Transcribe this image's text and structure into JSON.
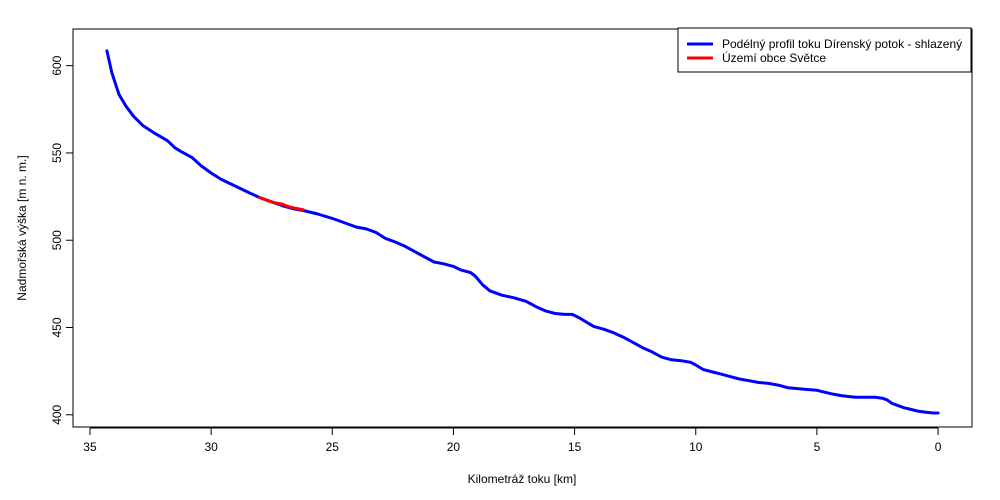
{
  "chart_data": {
    "type": "line",
    "title": "",
    "xlabel": "Kilometráž toku [km]",
    "ylabel": "Nadmořská výška [m n. m.]",
    "xlim": [
      35.7,
      -1.4
    ],
    "ylim": [
      393,
      621
    ],
    "x_reversed": true,
    "x_ticks": [
      35,
      30,
      25,
      20,
      15,
      10,
      5,
      0
    ],
    "x_tick_labels": [
      "35",
      "30",
      "25",
      "20",
      "15",
      "10",
      "5",
      "0"
    ],
    "y_ticks": [
      400,
      450,
      500,
      550,
      600
    ],
    "y_tick_labels": [
      "400",
      "450",
      "500",
      "550",
      "600"
    ],
    "grid": false,
    "legend_position": "top-right",
    "series": [
      {
        "name": "Podélný profil toku Dírenský potok - shlazený",
        "color": "#0000ff",
        "x": [
          34.3,
          34.1,
          33.8,
          33.5,
          33.2,
          32.8,
          32.3,
          31.8,
          31.5,
          31.2,
          30.8,
          30.4,
          30.0,
          29.6,
          29.0,
          28.4,
          28.0,
          27.4,
          27.0,
          26.6,
          26.2,
          25.6,
          25.0,
          24.4,
          24.0,
          23.6,
          23.2,
          22.8,
          22.4,
          22.0,
          21.6,
          21.2,
          20.8,
          20.4,
          20.0,
          19.7,
          19.3,
          19.1,
          18.8,
          18.5,
          18.0,
          17.5,
          17.0,
          16.6,
          16.2,
          15.8,
          15.4,
          15.1,
          14.8,
          14.5,
          14.2,
          13.8,
          13.4,
          13.0,
          12.6,
          12.2,
          11.8,
          11.4,
          11.0,
          10.6,
          10.2,
          10.0,
          9.7,
          9.3,
          9.0,
          8.6,
          8.2,
          7.8,
          7.4,
          7.0,
          6.6,
          6.2,
          5.8,
          5.4,
          5.0,
          4.7,
          4.4,
          4.0,
          3.7,
          3.4,
          3.0,
          2.6,
          2.3,
          2.1,
          1.9,
          1.7,
          1.4,
          1.1,
          0.8,
          0.5,
          0.2,
          0.0
        ],
        "y": [
          608.5,
          596.0,
          583.5,
          576.5,
          571.0,
          565.5,
          561.0,
          557.0,
          553.0,
          550.5,
          547.5,
          542.5,
          538.5,
          535.0,
          531.0,
          527.0,
          524.5,
          521.5,
          519.5,
          518.0,
          517.0,
          515.0,
          512.5,
          509.5,
          507.5,
          506.5,
          504.5,
          501.0,
          499.0,
          496.5,
          493.5,
          490.5,
          487.5,
          486.5,
          485.0,
          483.0,
          481.5,
          479.5,
          474.5,
          471.0,
          468.5,
          467.0,
          465.0,
          462.0,
          459.5,
          458.0,
          457.5,
          457.5,
          455.5,
          453.0,
          450.5,
          449.0,
          447.0,
          444.5,
          441.5,
          438.5,
          436.0,
          433.0,
          431.5,
          431.0,
          430.0,
          428.5,
          426.0,
          424.5,
          423.5,
          422.0,
          420.5,
          419.5,
          418.5,
          418.0,
          417.0,
          415.5,
          415.0,
          414.5,
          414.0,
          413.0,
          412.0,
          411.0,
          410.5,
          410.0,
          410.0,
          410.0,
          409.5,
          408.5,
          406.5,
          405.5,
          404.0,
          403.0,
          402.0,
          401.5,
          401.0,
          401.0
        ]
      },
      {
        "name": "Území obce Světce",
        "color": "#ff0000",
        "x": [
          28.0,
          27.7,
          27.4,
          27.1,
          26.8,
          26.5,
          26.2
        ],
        "y": [
          524.5,
          522.8,
          521.5,
          520.8,
          519.2,
          518.2,
          517.5
        ]
      }
    ]
  }
}
